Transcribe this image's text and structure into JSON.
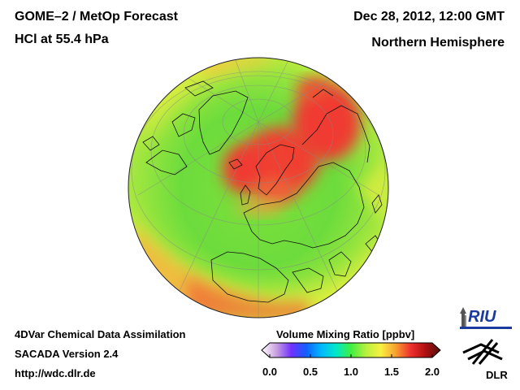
{
  "header": {
    "title_line1": "GOME–2 / MetOp Forecast",
    "title_line2": "HCl at 55.4 hPa",
    "datetime": "Dec 28, 2012, 12:00 GMT",
    "region": "Northern Hemisphere"
  },
  "footer": {
    "line1": "4DVar Chemical Data Assimilation",
    "line2": "SACADA Version 2.4",
    "url": "http://wdc.dlr.de"
  },
  "colorbar": {
    "title": "Volume Mixing Ratio [ppbv]",
    "ticks": [
      "0.0",
      "0.5",
      "1.0",
      "1.5",
      "2.0"
    ],
    "min": 0.0,
    "max": 2.0,
    "colors": [
      "#ffffff",
      "#c8a0e0",
      "#7030ff",
      "#1060ff",
      "#00b8ff",
      "#00e8c8",
      "#40ee40",
      "#b8f040",
      "#f8f040",
      "#f8a030",
      "#f03030",
      "#b01010",
      "#501010"
    ]
  },
  "logos": {
    "riu": "RIU",
    "dlr": "DLR"
  },
  "map": {
    "projection": "orthographic-northern-hemisphere",
    "field": "HCl volume mixing ratio",
    "background_level": "~1.1 ppbv (green)",
    "high_region": "~1.8-2.0 ppbv over Scandinavia and Northern Siberia (red)"
  }
}
